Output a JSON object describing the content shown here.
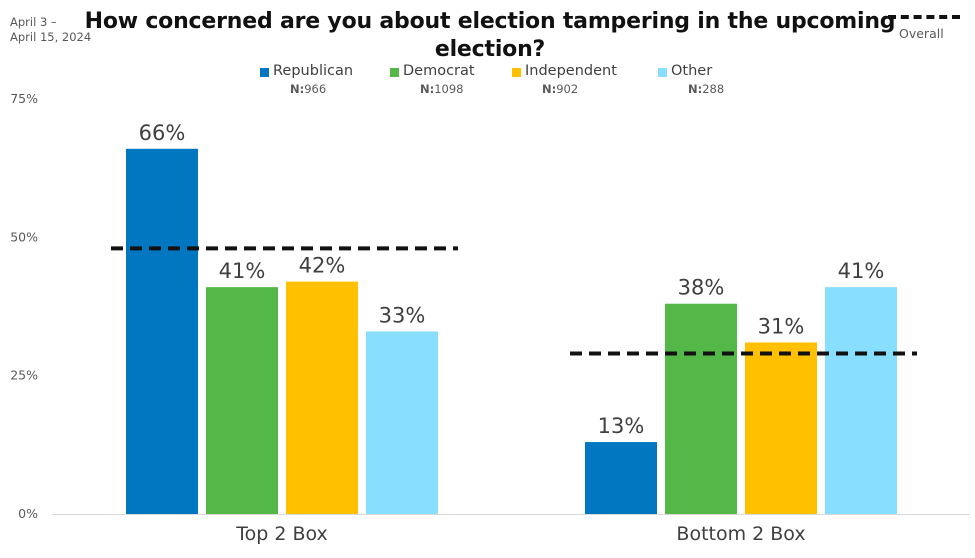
{
  "date_note": {
    "line1": "April 3 –",
    "line2": "April 15, 2024"
  },
  "chart_data": {
    "type": "bar",
    "title": "How concerned are you about election tampering in the upcoming election?",
    "categories": [
      "Top 2 Box",
      "Bottom 2 Box"
    ],
    "series": [
      {
        "name": "Republican",
        "n_label": "N:",
        "n": "966",
        "color": "#0077C0",
        "values": [
          66,
          13
        ]
      },
      {
        "name": "Democrat",
        "n_label": "N:",
        "n": "1098",
        "color": "#53B848",
        "values": [
          41,
          38
        ]
      },
      {
        "name": "Independent",
        "n_label": "N:",
        "n": "902",
        "color": "#FFC000",
        "values": [
          42,
          31
        ]
      },
      {
        "name": "Other",
        "n_label": "N:",
        "n": "288",
        "color": "#87DEFF",
        "values": [
          33,
          41
        ]
      }
    ],
    "value_labels": [
      [
        "66%",
        "13%"
      ],
      [
        "41%",
        "38%"
      ],
      [
        "42%",
        "31%"
      ],
      [
        "33%",
        "41%"
      ]
    ],
    "overall": {
      "name": "Overall",
      "values": [
        48,
        29
      ]
    },
    "yticks": [
      "0%",
      "25%",
      "50%",
      "75%"
    ],
    "ylim": [
      0,
      75
    ],
    "grid": false,
    "legend": "top-center"
  }
}
